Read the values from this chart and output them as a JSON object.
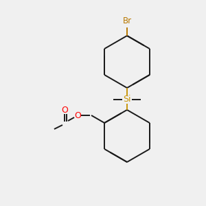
{
  "bg_color": "#f0f0f0",
  "bond_color": "#1a1a1a",
  "si_color": "#c8960a",
  "br_color": "#b87800",
  "o_color": "#ff0000",
  "label_si": "Si",
  "label_br": "Br",
  "label_o": "O",
  "figsize": [
    3.0,
    3.0
  ],
  "dpi": 100
}
